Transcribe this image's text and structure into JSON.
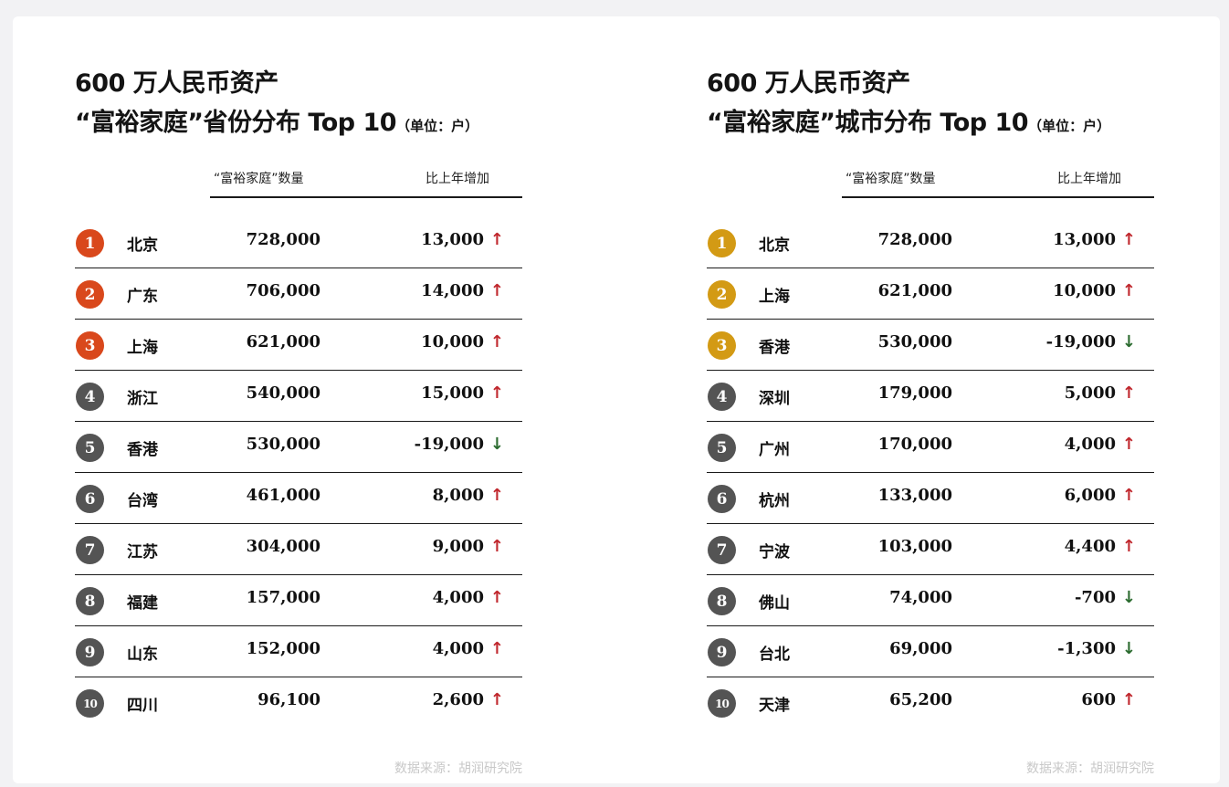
{
  "colors": {
    "top3_left": "#d9481c",
    "top3_right": "#d39a14",
    "other": "#545454",
    "up": "#c0272d",
    "down": "#2b6b2f"
  },
  "panels": [
    {
      "title_line1": "600 万人民币资产",
      "title_line2": "“富裕家庭”省份分布 Top 10",
      "unit": "（单位：户）",
      "col_count": "“富裕家庭”数量",
      "col_change": "比上年增加",
      "rows": [
        {
          "rank": "1",
          "name": "北京",
          "count": "728,000",
          "change": "13,000",
          "dir": "up"
        },
        {
          "rank": "2",
          "name": "广东",
          "count": "706,000",
          "change": "14,000",
          "dir": "up"
        },
        {
          "rank": "3",
          "name": "上海",
          "count": "621,000",
          "change": "10,000",
          "dir": "up"
        },
        {
          "rank": "4",
          "name": "浙江",
          "count": "540,000",
          "change": "15,000",
          "dir": "up"
        },
        {
          "rank": "5",
          "name": "香港",
          "count": "530,000",
          "change": "-19,000",
          "dir": "down"
        },
        {
          "rank": "6",
          "name": "台湾",
          "count": "461,000",
          "change": "8,000",
          "dir": "up"
        },
        {
          "rank": "7",
          "name": "江苏",
          "count": "304,000",
          "change": "9,000",
          "dir": "up"
        },
        {
          "rank": "8",
          "name": "福建",
          "count": "157,000",
          "change": "4,000",
          "dir": "up"
        },
        {
          "rank": "9",
          "name": "山东",
          "count": "152,000",
          "change": "4,000",
          "dir": "up"
        },
        {
          "rank": "10",
          "name": "四川",
          "count": "96,100",
          "change": "2,600",
          "dir": "up"
        }
      ],
      "source": "数据来源：胡润研究院"
    },
    {
      "title_line1": "600 万人民币资产",
      "title_line2": "“富裕家庭”城市分布 Top 10",
      "unit": "（单位：户）",
      "col_count": "“富裕家庭”数量",
      "col_change": "比上年增加",
      "rows": [
        {
          "rank": "1",
          "name": "北京",
          "count": "728,000",
          "change": "13,000",
          "dir": "up"
        },
        {
          "rank": "2",
          "name": "上海",
          "count": "621,000",
          "change": "10,000",
          "dir": "up"
        },
        {
          "rank": "3",
          "name": "香港",
          "count": "530,000",
          "change": "-19,000",
          "dir": "down"
        },
        {
          "rank": "4",
          "name": "深圳",
          "count": "179,000",
          "change": "5,000",
          "dir": "up"
        },
        {
          "rank": "5",
          "name": "广州",
          "count": "170,000",
          "change": "4,000",
          "dir": "up"
        },
        {
          "rank": "6",
          "name": "杭州",
          "count": "133,000",
          "change": "6,000",
          "dir": "up"
        },
        {
          "rank": "7",
          "name": "宁波",
          "count": "103,000",
          "change": "4,400",
          "dir": "up"
        },
        {
          "rank": "8",
          "name": "佛山",
          "count": "74,000",
          "change": "-700",
          "dir": "down"
        },
        {
          "rank": "9",
          "name": "台北",
          "count": "69,000",
          "change": "-1,300",
          "dir": "down"
        },
        {
          "rank": "10",
          "name": "天津",
          "count": "65,200",
          "change": "600",
          "dir": "up"
        }
      ],
      "source": "数据来源：胡润研究院"
    }
  ]
}
